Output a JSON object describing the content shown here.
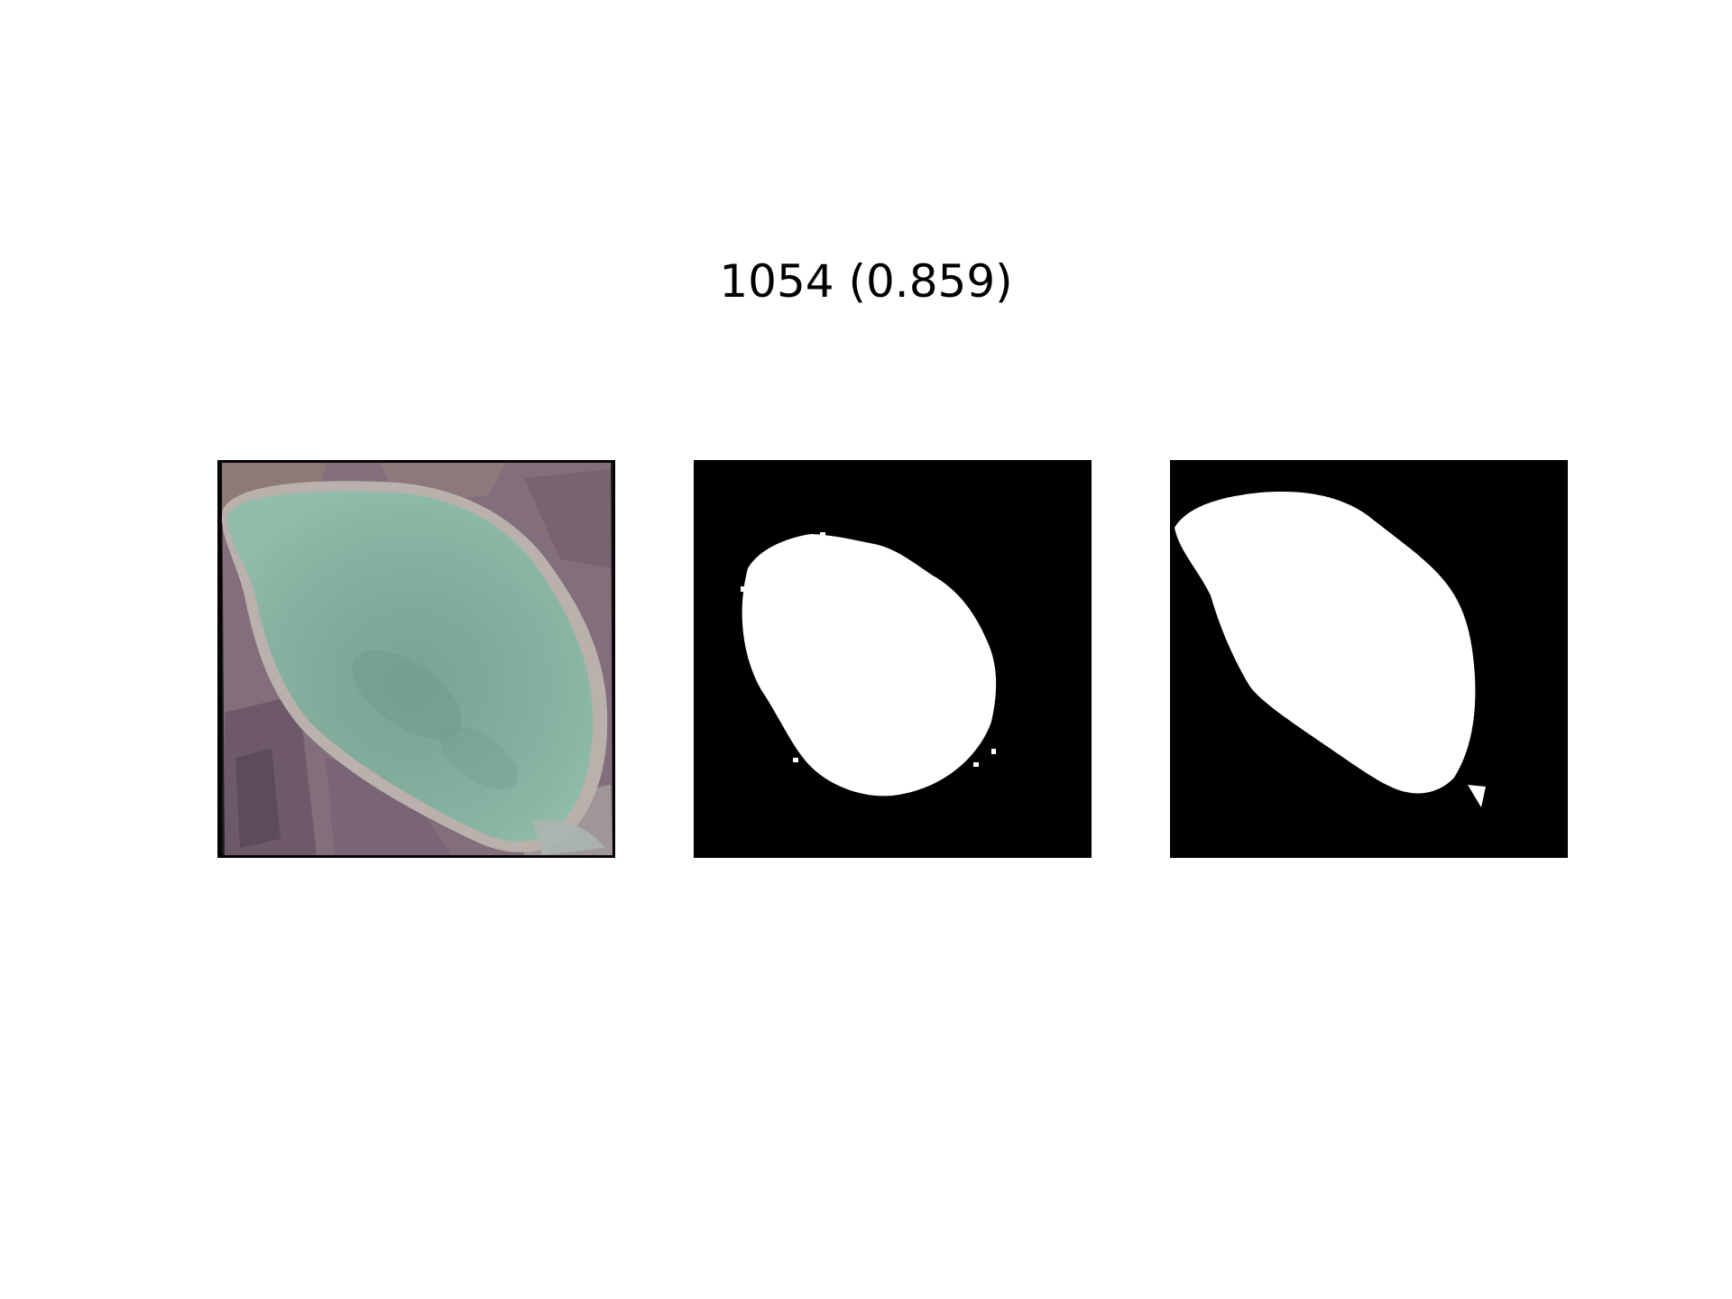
{
  "figure": {
    "title": "1054 (0.859)"
  },
  "panels": [
    {
      "role": "satellite-image",
      "subject": "lake"
    },
    {
      "role": "predicted-mask"
    },
    {
      "role": "ground-truth-mask"
    }
  ],
  "colors": {
    "background": "#ffffff",
    "mask_foreground": "#ffffff",
    "mask_background": "#000000",
    "water": "#7fae96",
    "farmland": "#7a6670",
    "shore": "#b9b0a8"
  }
}
